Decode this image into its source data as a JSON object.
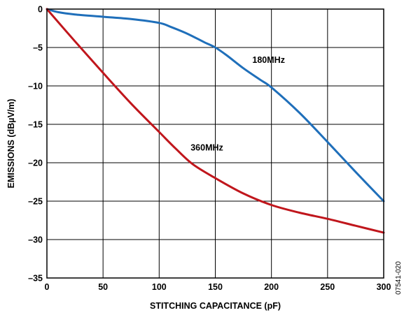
{
  "chart_data": {
    "type": "line",
    "xlabel": "STITCHING CAPACITANCE (pF)",
    "ylabel": "EMISSIONS (dBµV/m)",
    "xlim": [
      0,
      300
    ],
    "ylim": [
      -35,
      0
    ],
    "xticks": [
      0,
      50,
      100,
      150,
      200,
      250,
      300
    ],
    "yticks": [
      0,
      -5,
      -10,
      -15,
      -20,
      -25,
      -30,
      -35
    ],
    "xtick_labels": [
      "0",
      "50",
      "100",
      "150",
      "200",
      "250",
      "300"
    ],
    "ytick_labels": [
      "0",
      "–5",
      "–10",
      "–15",
      "–20",
      "–25",
      "–30",
      "–35"
    ],
    "grid": true,
    "legend": "none",
    "series": [
      {
        "name": "180MHz",
        "color": "#1f6fba",
        "x": [
          0,
          10,
          25,
          50,
          75,
          100,
          110,
          125,
          140,
          150,
          160,
          175,
          190,
          200,
          225,
          250,
          275,
          300
        ],
        "y": [
          0,
          -0.4,
          -0.7,
          -1.0,
          -1.3,
          -1.8,
          -2.3,
          -3.2,
          -4.3,
          -5.0,
          -6.0,
          -7.7,
          -9.2,
          -10.2,
          -13.5,
          -17.3,
          -21.2,
          -25.0
        ]
      },
      {
        "name": "360MHz",
        "color": "#c0161c",
        "x": [
          0,
          25,
          50,
          75,
          100,
          115,
          130,
          150,
          175,
          200,
          225,
          250,
          275,
          300
        ],
        "y": [
          0,
          -4.2,
          -8.3,
          -12.3,
          -16.0,
          -18.2,
          -20.2,
          -22.0,
          -24.0,
          -25.5,
          -26.5,
          -27.3,
          -28.2,
          -29.1
        ]
      }
    ],
    "annotations": [
      "180MHz",
      "360MHz"
    ]
  },
  "figure_id": "07541-020"
}
